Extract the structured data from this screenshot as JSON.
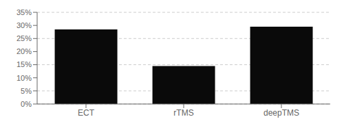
{
  "chart_data": {
    "type": "bar",
    "categories": [
      "ECT",
      "rTMS",
      "deepTMS"
    ],
    "values": [
      28.5,
      14.5,
      29.5
    ],
    "color": "#0a0a0a",
    "ylim": [
      0,
      35
    ],
    "yticks": [
      {
        "value": 0,
        "label": "0%"
      },
      {
        "value": 5,
        "label": "5%"
      },
      {
        "value": 10,
        "label": "10%"
      },
      {
        "value": 15,
        "label": "15%"
      },
      {
        "value": 20,
        "label": "20%"
      },
      {
        "value": 25,
        "label": "25%"
      },
      {
        "value": 30,
        "label": "30%"
      },
      {
        "value": 35,
        "label": "35%"
      }
    ],
    "grid": true
  }
}
